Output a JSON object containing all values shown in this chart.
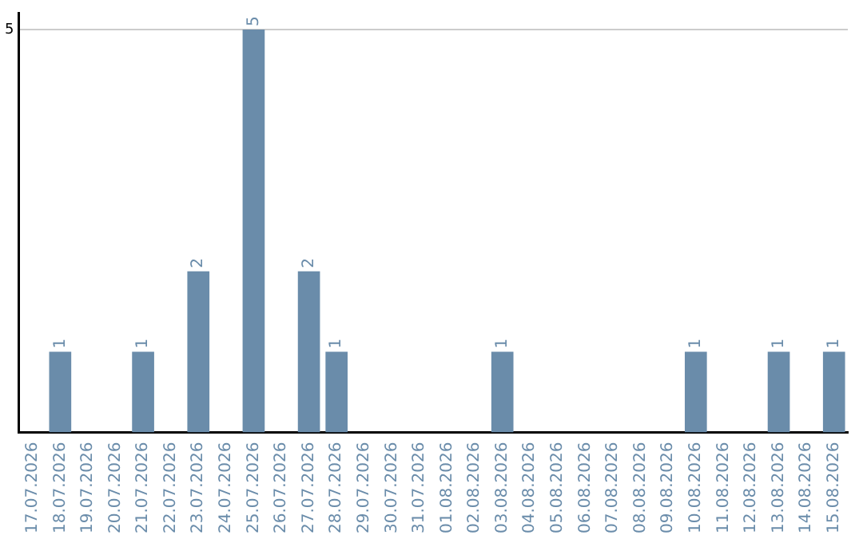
{
  "chart_data": {
    "type": "bar",
    "categories": [
      "17.07.2026",
      "18.07.2026",
      "19.07.2026",
      "20.07.2026",
      "21.07.2026",
      "22.07.2026",
      "23.07.2026",
      "24.07.2026",
      "25.07.2026",
      "26.07.2026",
      "27.07.2026",
      "28.07.2026",
      "29.07.2026",
      "30.07.2026",
      "31.07.2026",
      "01.08.2026",
      "02.08.2026",
      "03.08.2026",
      "04.08.2026",
      "05.08.2026",
      "06.08.2026",
      "07.08.2026",
      "08.08.2026",
      "09.08.2026",
      "10.08.2026",
      "11.08.2026",
      "12.08.2026",
      "13.08.2026",
      "14.08.2026",
      "15.08.2026"
    ],
    "values": [
      0,
      1,
      0,
      0,
      1,
      0,
      2,
      0,
      5,
      0,
      2,
      1,
      0,
      0,
      0,
      0,
      0,
      1,
      0,
      0,
      0,
      0,
      0,
      0,
      1,
      0,
      0,
      1,
      0,
      1
    ],
    "value_labels": [
      null,
      "1",
      null,
      null,
      "1",
      null,
      "2",
      null,
      "5",
      null,
      "2",
      "1",
      null,
      null,
      null,
      null,
      null,
      "1",
      null,
      null,
      null,
      null,
      null,
      null,
      "1",
      null,
      null,
      "1",
      null,
      "1"
    ],
    "color": "#6a8caa",
    "ylim": [
      0,
      5.2
    ],
    "yticks": [
      5
    ],
    "grid": "y"
  }
}
